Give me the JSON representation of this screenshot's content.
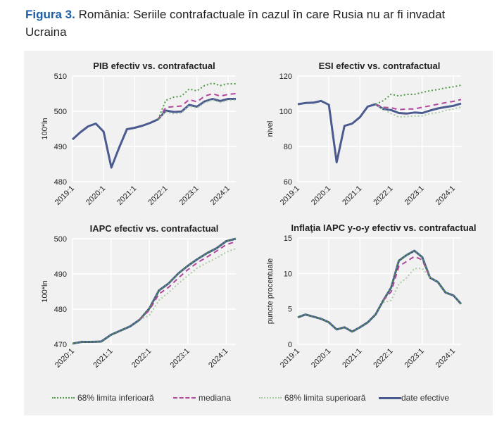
{
  "figure": {
    "number": "Figura 3.",
    "title": "România: Seriile contrafactuale în cazul în care Rusia nu ar fi invadat Ucraina"
  },
  "legend": [
    {
      "label": "68% limita inferioară",
      "color": "#4f9a45",
      "style": "dotted"
    },
    {
      "label": "mediana",
      "color": "#b0479b",
      "style": "dashed"
    },
    {
      "label": "68% limita superioară",
      "color": "#a9c9a2",
      "style": "dotted"
    },
    {
      "label": "date efective",
      "color": "#4b5b90",
      "style": "solid"
    }
  ],
  "chart_data": [
    {
      "type": "line",
      "title": "PIB efectiv vs. contrafactual",
      "ylabel": "100*ln",
      "xlabel": "",
      "x_start": "2019:1",
      "x_tick_labels": [
        "2019:1",
        "2020:1",
        "2021:1",
        "2022:1",
        "2023:1",
        "2024:1"
      ],
      "yticks": [
        480,
        490,
        500,
        510
      ],
      "ylim": [
        480,
        510
      ],
      "grid": true,
      "series": [
        {
          "name": "68% limita inferioară",
          "values": [
            null,
            null,
            null,
            null,
            null,
            null,
            null,
            null,
            null,
            null,
            null,
            497.7,
            503.1,
            504.0,
            504.3,
            506.3,
            505.8,
            507.3,
            508.0,
            507.3,
            507.8,
            507.8
          ]
        },
        {
          "name": "68% limita superioară",
          "values": [
            null,
            null,
            null,
            null,
            null,
            null,
            null,
            null,
            null,
            null,
            null,
            497.7,
            499.8,
            499.3,
            499.5,
            501.5,
            500.9,
            502.4,
            503.2,
            502.5,
            503.1,
            503.2
          ]
        },
        {
          "name": "mediana",
          "values": [
            null,
            null,
            null,
            null,
            null,
            null,
            null,
            null,
            null,
            null,
            null,
            497.7,
            501.1,
            501.3,
            501.5,
            503.3,
            502.7,
            504.3,
            505.0,
            504.3,
            504.8,
            505.0
          ]
        },
        {
          "name": "date efective",
          "values": [
            492.0,
            494.0,
            495.7,
            496.5,
            494.2,
            484.0,
            489.7,
            494.9,
            495.3,
            495.9,
            496.7,
            497.7,
            500.2,
            499.8,
            499.9,
            501.8,
            501.3,
            502.8,
            503.5,
            502.9,
            503.5,
            503.5
          ]
        }
      ]
    },
    {
      "type": "line",
      "title": "ESI efectiv vs. contrafactual",
      "ylabel": "nivel",
      "xlabel": "",
      "x_start": "2019:1",
      "x_tick_labels": [
        "2019:1",
        "2020:1",
        "2021:1",
        "2022:1",
        "2023:1",
        "2024:1"
      ],
      "yticks": [
        60,
        80,
        100,
        120
      ],
      "ylim": [
        60,
        120
      ],
      "grid": true,
      "series": [
        {
          "name": "68% limita inferioară",
          "values": [
            null,
            null,
            null,
            null,
            null,
            null,
            null,
            null,
            null,
            null,
            104.0,
            106.0,
            109.7,
            108.7,
            109.6,
            109.6,
            110.7,
            111.7,
            112.3,
            113.3,
            113.9,
            114.8
          ]
        },
        {
          "name": "68% limita superioară",
          "values": [
            null,
            null,
            null,
            null,
            null,
            null,
            null,
            null,
            null,
            null,
            104.0,
            101.0,
            98.7,
            96.7,
            97.0,
            97.3,
            97.3,
            98.7,
            99.3,
            100.4,
            101.3,
            102.4
          ]
        },
        {
          "name": "mediana",
          "values": [
            null,
            null,
            null,
            null,
            null,
            null,
            null,
            null,
            null,
            null,
            104.0,
            102.3,
            102.0,
            100.9,
            101.3,
            101.3,
            102.3,
            103.1,
            104.0,
            104.9,
            105.6,
            106.7
          ]
        },
        {
          "name": "date efective",
          "values": [
            104.0,
            104.7,
            104.9,
            105.9,
            103.7,
            71.0,
            91.7,
            93.0,
            96.7,
            102.7,
            104.0,
            101.3,
            100.7,
            99.0,
            98.7,
            99.3,
            99.0,
            100.4,
            101.6,
            102.4,
            103.1,
            104.4
          ]
        }
      ]
    },
    {
      "type": "line",
      "title": "IAPC efectiv vs. contrafactual",
      "ylabel": "100*ln",
      "xlabel": "",
      "x_start": "2020:1",
      "x_tick_labels": [
        "2020:1",
        "2021:1",
        "2022:1",
        "2023:1",
        "2024:1"
      ],
      "yticks": [
        470,
        480,
        490,
        500
      ],
      "ylim": [
        470,
        500
      ],
      "grid": true,
      "series": [
        {
          "name": "68% limita inferioară",
          "values": [
            470.2,
            470.7,
            470.7,
            470.8,
            472.7,
            473.9,
            475.1,
            477.0,
            480.2,
            485.3,
            487.3,
            490.1,
            492.3,
            494.2,
            495.9,
            497.3,
            499.3,
            500.0
          ]
        },
        {
          "name": "68% limita superioară",
          "values": [
            null,
            null,
            null,
            null,
            null,
            null,
            null,
            477.0,
            478.2,
            482.5,
            484.7,
            487.2,
            489.5,
            491.7,
            493.2,
            494.5,
            496.2,
            497.2
          ]
        },
        {
          "name": "mediana",
          "values": [
            null,
            null,
            null,
            null,
            null,
            null,
            null,
            477.0,
            479.7,
            484.3,
            486.2,
            488.8,
            491.2,
            493.2,
            494.8,
            496.5,
            498.3,
            499.2
          ]
        },
        {
          "name": "date efective",
          "values": [
            470.2,
            470.7,
            470.7,
            470.8,
            472.7,
            473.9,
            475.1,
            477.0,
            480.2,
            485.3,
            487.3,
            490.1,
            492.3,
            494.2,
            495.9,
            497.3,
            499.3,
            500.0
          ]
        }
      ]
    },
    {
      "type": "line",
      "title": "Inflaţia IAPC y-o-y efectiv vs. contrafactual",
      "ylabel": "puncte procentuale",
      "xlabel": "",
      "x_start": "2019:1",
      "x_tick_labels": [
        "2019:1",
        "2020:1",
        "2021:1",
        "2022:1",
        "2023:1",
        "2024:1"
      ],
      "yticks": [
        0,
        5,
        10,
        15
      ],
      "ylim": [
        0,
        15
      ],
      "grid": true,
      "series": [
        {
          "name": "68% limita inferioară",
          "values": [
            3.8,
            4.2,
            3.9,
            3.6,
            3.1,
            2.1,
            2.4,
            1.8,
            2.4,
            3.1,
            4.2,
            6.2,
            8.0,
            11.8,
            12.6,
            13.2,
            12.3,
            9.4,
            8.8,
            7.3,
            6.9,
            5.7
          ]
        },
        {
          "name": "68% limita superioară",
          "values": [
            null,
            null,
            null,
            null,
            null,
            null,
            null,
            null,
            null,
            null,
            null,
            5.9,
            6.2,
            8.5,
            9.4,
            10.7,
            10.7,
            9.4,
            null,
            null,
            null,
            null
          ]
        },
        {
          "name": "mediana",
          "values": [
            null,
            null,
            null,
            null,
            null,
            null,
            null,
            null,
            null,
            null,
            null,
            6.2,
            7.4,
            11.0,
            11.7,
            12.4,
            11.9,
            9.4,
            null,
            null,
            null,
            null
          ]
        },
        {
          "name": "date efective",
          "values": [
            3.8,
            4.2,
            3.9,
            3.6,
            3.1,
            2.1,
            2.4,
            1.8,
            2.4,
            3.1,
            4.2,
            6.2,
            8.0,
            11.8,
            12.6,
            13.2,
            12.3,
            9.4,
            8.8,
            7.3,
            6.9,
            5.7
          ]
        }
      ]
    }
  ]
}
